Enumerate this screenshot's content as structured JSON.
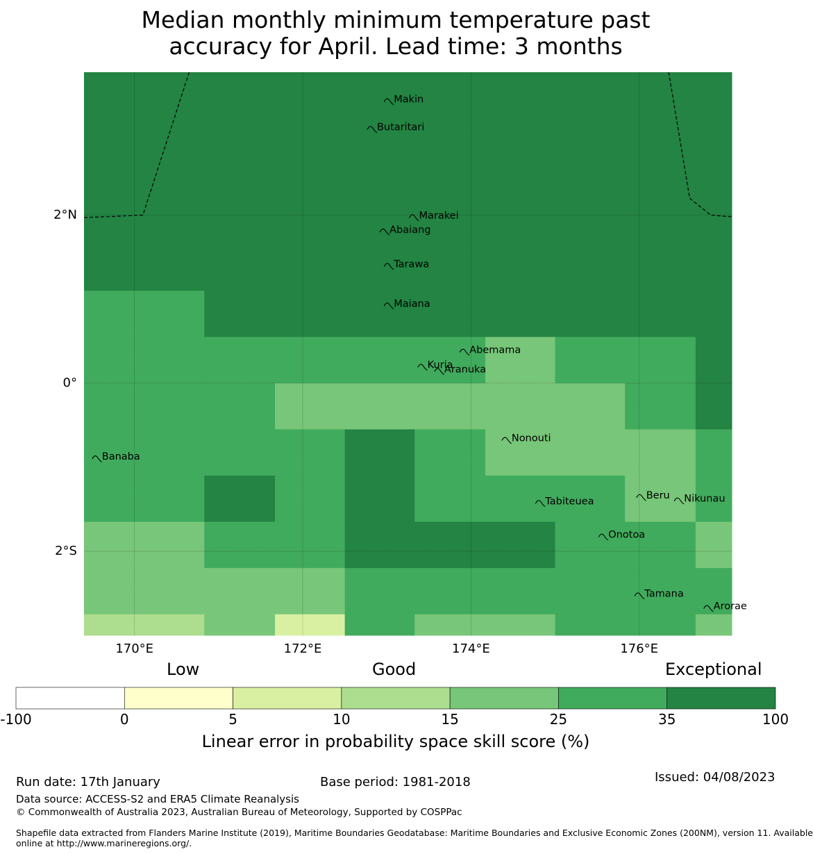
{
  "title": {
    "line1": "Median monthly minimum temperature past",
    "line2": "accuracy for April. Lead time: 3 months"
  },
  "map": {
    "lon_range": [
      169.4,
      177.1
    ],
    "lat_range": [
      -3.0,
      3.7
    ],
    "y_ticks": [
      {
        "lat": 2,
        "label": "2°N"
      },
      {
        "lat": 0,
        "label": "0°"
      },
      {
        "lat": -2,
        "label": "2°S"
      }
    ],
    "x_ticks": [
      {
        "lon": 170,
        "label": "170°E"
      },
      {
        "lon": 172,
        "label": "172°E"
      },
      {
        "lon": 174,
        "label": "174°E"
      },
      {
        "lon": 176,
        "label": "176°E"
      }
    ],
    "lon_edges": [
      169.4,
      170.83,
      171.67,
      172.5,
      173.33,
      174.17,
      175.0,
      175.83,
      176.67,
      177.1
    ],
    "lat_edges": [
      3.7,
      1.1,
      0.55,
      0.0,
      -0.55,
      -1.1,
      -1.65,
      -2.2,
      -2.75,
      -3.0
    ],
    "skill_grid": [
      [
        "E",
        "E",
        "E",
        "E",
        "E",
        "E",
        "E",
        "E",
        "E"
      ],
      [
        "G",
        "E",
        "E",
        "E",
        "E",
        "E",
        "E",
        "E",
        "E"
      ],
      [
        "G",
        "G",
        "G",
        "G",
        "G",
        "M",
        "G",
        "G",
        "E"
      ],
      [
        "G",
        "G",
        "M",
        "M",
        "M",
        "M",
        "M",
        "G",
        "E"
      ],
      [
        "G",
        "G",
        "G",
        "E",
        "G",
        "M",
        "M",
        "M",
        "G"
      ],
      [
        "G",
        "E",
        "G",
        "E",
        "G",
        "G",
        "G",
        "M",
        "G"
      ],
      [
        "M",
        "G",
        "G",
        "E",
        "E",
        "E",
        "G",
        "G",
        "M"
      ],
      [
        "M",
        "M",
        "M",
        "G",
        "G",
        "G",
        "G",
        "G",
        "G"
      ],
      [
        "L",
        "M",
        "H",
        "G",
        "M",
        "M",
        "G",
        "G",
        "M"
      ]
    ],
    "category_colors": {
      "E": "#238443",
      "G": "#41ab5d",
      "M": "#78c679",
      "L": "#addd8e",
      "H": "#d9f0a3"
    },
    "islands": [
      {
        "name": "Makin",
        "lon": 173.0,
        "lat": 3.38
      },
      {
        "name": "Butaritari",
        "lon": 172.8,
        "lat": 3.05
      },
      {
        "name": "Marakei",
        "lon": 173.3,
        "lat": 2.0
      },
      {
        "name": "Abaiang",
        "lon": 172.95,
        "lat": 1.83
      },
      {
        "name": "Tarawa",
        "lon": 173.0,
        "lat": 1.42
      },
      {
        "name": "Maiana",
        "lon": 173.0,
        "lat": 0.95
      },
      {
        "name": "Abemama",
        "lon": 173.9,
        "lat": 0.4
      },
      {
        "name": "Kuria",
        "lon": 173.4,
        "lat": 0.22
      },
      {
        "name": "Aranuka",
        "lon": 173.6,
        "lat": 0.17
      },
      {
        "name": "Nonouti",
        "lon": 174.4,
        "lat": -0.65
      },
      {
        "name": "Banaba",
        "lon": 169.53,
        "lat": -0.87
      },
      {
        "name": "Tabiteuea",
        "lon": 174.8,
        "lat": -1.4
      },
      {
        "name": "Beru",
        "lon": 176.0,
        "lat": -1.33
      },
      {
        "name": "Nikunau",
        "lon": 176.45,
        "lat": -1.37
      },
      {
        "name": "Onotoa",
        "lon": 175.55,
        "lat": -1.8
      },
      {
        "name": "Tamana",
        "lon": 175.98,
        "lat": -2.5
      },
      {
        "name": "Arorae",
        "lon": 176.8,
        "lat": -2.65
      }
    ]
  },
  "legend": {
    "categories": [
      "Low",
      "Good",
      "Exceptional"
    ],
    "bins": [
      "#ffffff",
      "#ffffcc",
      "#d9f0a3",
      "#addd8e",
      "#78c679",
      "#41ab5d",
      "#238443"
    ],
    "ticks": [
      "-100",
      "0",
      "5",
      "10",
      "15",
      "25",
      "35",
      "100"
    ],
    "label": "Linear error in probability space skill score (%)"
  },
  "footer": {
    "run_date": "Run date: 17th January",
    "base_period": "Base period: 1981-2018",
    "issued": "Issued: 04/08/2023",
    "data_source": "Data source: ACCESS-S2 and ERA5 Climate Reanalysis",
    "copyright": "© Commonwealth of Australia 2023, Australian Bureau of Meteorology, Supported by COSPPac",
    "shapefile1": "Shapefile data extracted from Flanders Marine Institute (2019), Maritime Boundaries Geodatabase: Maritime Boundaries and Exclusive Economic Zones (200NM), version 11. Available",
    "shapefile2": "online at http://www.marineregions.org/."
  }
}
